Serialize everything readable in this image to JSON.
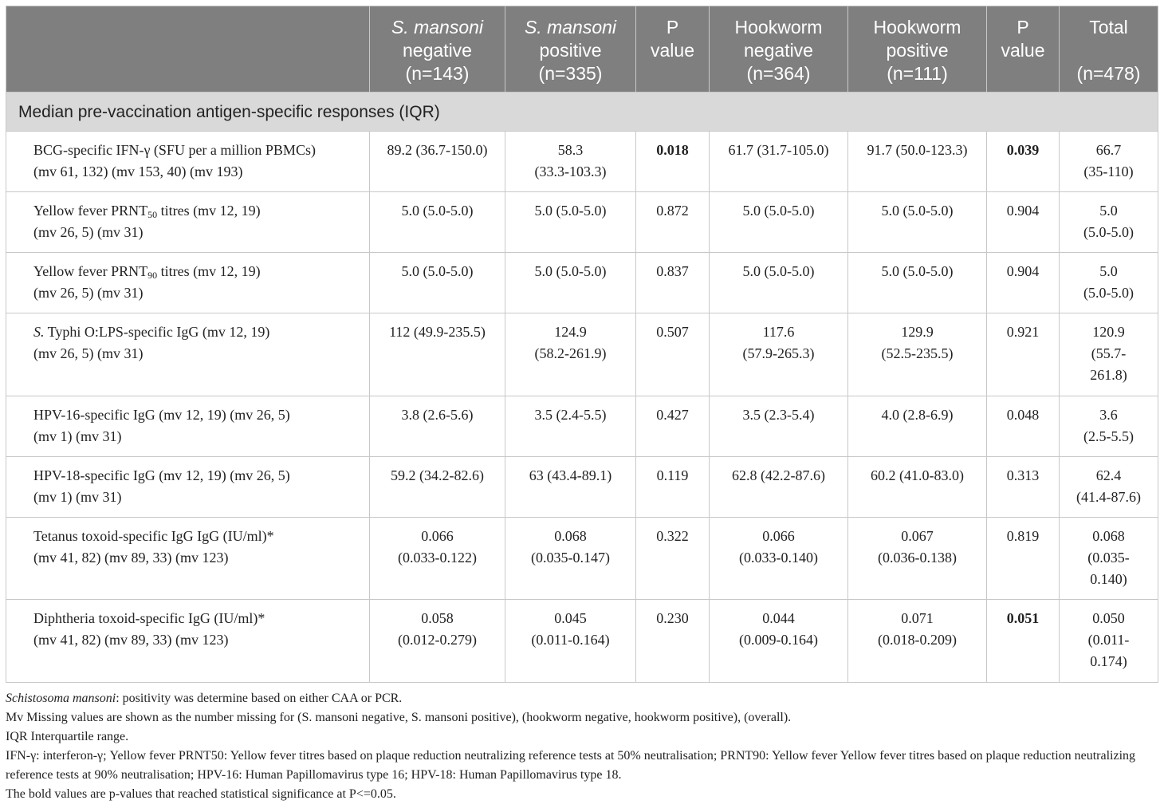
{
  "header": {
    "col0": "",
    "smansoni_neg_a": "S. mansoni",
    "smansoni_neg_b": "negative",
    "smansoni_neg_n": "(n=143)",
    "smansoni_pos_a": "S. mansoni",
    "smansoni_pos_b": "positive",
    "smansoni_pos_n": "(n=335)",
    "p1_a": "P",
    "p1_b": "value",
    "hook_neg_a": "Hookworm",
    "hook_neg_b": "negative",
    "hook_neg_n": "(n=364)",
    "hook_pos_a": "Hookworm",
    "hook_pos_b": "positive",
    "hook_pos_n": "(n=111)",
    "p2_a": "P",
    "p2_b": "value",
    "total_a": "Total",
    "total_n": "(n=478)"
  },
  "section_title": "Median pre-vaccination antigen-specific responses (IQR)",
  "rows": [
    {
      "label1": "BCG-specific IFN-γ (SFU per a million PBMCs)",
      "label2": "(mv 61, 132) (mv 153, 40) (mv 193)",
      "sm_neg": "89.2 (36.7-150.0)",
      "sm_pos_a": "58.3",
      "sm_pos_b": "(33.3-103.3)",
      "p1": "0.018",
      "hw_neg": "61.7 (31.7-105.0)",
      "hw_pos": "91.7 (50.0-123.3)",
      "p2": "0.039",
      "total_a": "66.7",
      "total_b": "(35-110)"
    },
    {
      "label1_pre": "Yellow fever PRNT",
      "label1_sub": "50",
      "label1_post": " titres (mv 12, 19)",
      "label2": "(mv 26, 5) (mv 31)",
      "sm_neg": "5.0 (5.0-5.0)",
      "sm_pos": "5.0 (5.0-5.0)",
      "p1": "0.872",
      "hw_neg": "5.0 (5.0-5.0)",
      "hw_pos": "5.0 (5.0-5.0)",
      "p2": "0.904",
      "total_a": "5.0",
      "total_b": "(5.0-5.0)"
    },
    {
      "label1_pre": "Yellow fever PRNT",
      "label1_sub": "90",
      "label1_post": " titres (mv 12, 19)",
      "label2": "(mv 26, 5) (mv 31)",
      "sm_neg": "5.0 (5.0-5.0)",
      "sm_pos": "5.0 (5.0-5.0)",
      "p1": "0.837",
      "hw_neg": "5.0 (5.0-5.0)",
      "hw_pos": "5.0 (5.0-5.0)",
      "p2": "0.904",
      "total_a": "5.0",
      "total_b": "(5.0-5.0)"
    },
    {
      "label1_it": "S.",
      "label1_post": " Typhi O:LPS-specific IgG (mv 12, 19)",
      "label2": "(mv 26, 5) (mv 31)",
      "sm_neg": "112 (49.9-235.5)",
      "sm_pos_a": "124.9",
      "sm_pos_b": "(58.2-261.9)",
      "p1": "0.507",
      "hw_neg_a": "117.6",
      "hw_neg_b": "(57.9-265.3)",
      "hw_pos_a": "129.9",
      "hw_pos_b": "(52.5-235.5)",
      "p2": "0.921",
      "total_a": "120.9",
      "total_b": "(55.7-",
      "total_c": "261.8)"
    },
    {
      "label1": "HPV-16-specific IgG (mv 12, 19) (mv 26, 5)",
      "label2": "(mv 1) (mv 31)",
      "sm_neg": "3.8 (2.6-5.6)",
      "sm_pos": "3.5 (2.4-5.5)",
      "p1": "0.427",
      "hw_neg": "3.5 (2.3-5.4)",
      "hw_pos": "4.0 (2.8-6.9)",
      "p2": "0.048",
      "total_a": "3.6",
      "total_b": "(2.5-5.5)"
    },
    {
      "label1": "HPV-18-specific IgG (mv 12, 19) (mv 26, 5)",
      "label2": "(mv 1) (mv 31)",
      "sm_neg": "59.2 (34.2-82.6)",
      "sm_pos": "63 (43.4-89.1)",
      "p1": "0.119",
      "hw_neg": "62.8 (42.2-87.6)",
      "hw_pos": "60.2 (41.0-83.0)",
      "p2": "0.313",
      "total_a": "62.4",
      "total_b": "(41.4-87.6)"
    },
    {
      "label1": "Tetanus toxoid-specific IgG IgG (IU/ml)*",
      "label2": "(mv 41, 82) (mv 89, 33) (mv 123)",
      "sm_neg_a": "0.066",
      "sm_neg_b": "(0.033-0.122)",
      "sm_pos_a": "0.068",
      "sm_pos_b": "(0.035-0.147)",
      "p1": "0.322",
      "hw_neg_a": "0.066",
      "hw_neg_b": "(0.033-0.140)",
      "hw_pos_a": "0.067",
      "hw_pos_b": "(0.036-0.138)",
      "p2": "0.819",
      "total_a": "0.068",
      "total_b": "(0.035-",
      "total_c": "0.140)"
    },
    {
      "label1": "Diphtheria toxoid-specific IgG (IU/ml)*",
      "label2": "(mv 41, 82) (mv 89, 33) (mv 123)",
      "sm_neg_a": "0.058",
      "sm_neg_b": "(0.012-0.279)",
      "sm_pos_a": "0.045",
      "sm_pos_b": "(0.011-0.164)",
      "p1": "0.230",
      "hw_neg_a": "0.044",
      "hw_neg_b": "(0.009-0.164)",
      "hw_pos_a": "0.071",
      "hw_pos_b": "(0.018-0.209)",
      "p2": "0.051",
      "total_a": "0.050",
      "total_b": "(0.011-",
      "total_c": "0.174)"
    }
  ],
  "footnotes": {
    "f1_it": "Schistosoma mansoni",
    "f1_rest": ": positivity was determine based on either CAA or PCR.",
    "f2": "Mv Missing values are shown as the number missing for (S. mansoni negative, S. mansoni positive), (hookworm negative, hookworm positive), (overall).",
    "f3": "IQR Interquartile range.",
    "f4": "IFN-γ: interferon-γ; Yellow fever PRNT50: Yellow fever titres based on plaque reduction neutralizing reference tests at 50% neutralisation; PRNT90: Yellow fever Yellow fever titres based on plaque reduction neutralizing reference tests at 90% neutralisation; HPV-16: Human Papillomavirus type 16; HPV-18: Human Papillomavirus type 18.",
    "f5": "The bold values are p-values that reached statistical significance at P<=0.05."
  },
  "colors": {
    "header_bg": "#7f7f7f",
    "section_bg": "#d9d9d9",
    "border": "#c8c8c8"
  }
}
